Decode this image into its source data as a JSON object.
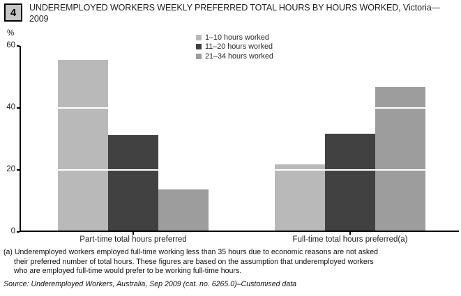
{
  "figure_number": "4",
  "header": {
    "title": "UNDEREMPLOYED WORKERS WEEKLY PREFERRED TOTAL HOURS BY HOURS WORKED, Victoria—2009",
    "title_lines": [
      "UNDEREMPLOYED WORKERS WEEKLY PREFERRED TOTAL HOURS BY HOURS WORKED, Victoria—",
      "2009"
    ]
  },
  "chart_data": {
    "type": "bar",
    "title": "UNDEREMPLOYED WORKERS WEEKLY PREFERRED TOTAL HOURS BY HOURS WORKED, Victoria—2009",
    "xlabel": "",
    "ylabel": "%",
    "ylim": [
      0,
      60
    ],
    "yticks": [
      0,
      20,
      40,
      60
    ],
    "grid": "white gridlines drawn over bars at 20 and 40",
    "legend_position": "top-center",
    "categories": [
      "Part-time total hours preferred",
      "Full-time total hours preferred(a)"
    ],
    "series": [
      {
        "name": "1–10 hours worked",
        "color": "#b9b9b9",
        "values": [
          55.4,
          21.8
        ]
      },
      {
        "name": "11–20 hours worked",
        "color": "#414141",
        "values": [
          31.2,
          31.7
        ]
      },
      {
        "name": "21–34 hours worked",
        "color": "#9d9d9d",
        "values": [
          13.7,
          46.7
        ]
      }
    ]
  },
  "footnote": {
    "lines": [
      "(a) Underemployed workers employed full-time working less than 35 hours due to economic reasons are not asked",
      "their preferred number of total hours. These figures are based on the assumption that underemployed workers",
      "who are employed full-time would prefer to be working full-time hours."
    ]
  },
  "source": "Source: Underemployed Workers, Australia, Sep 2009 (cat. no. 6265.0)–Customised data"
}
